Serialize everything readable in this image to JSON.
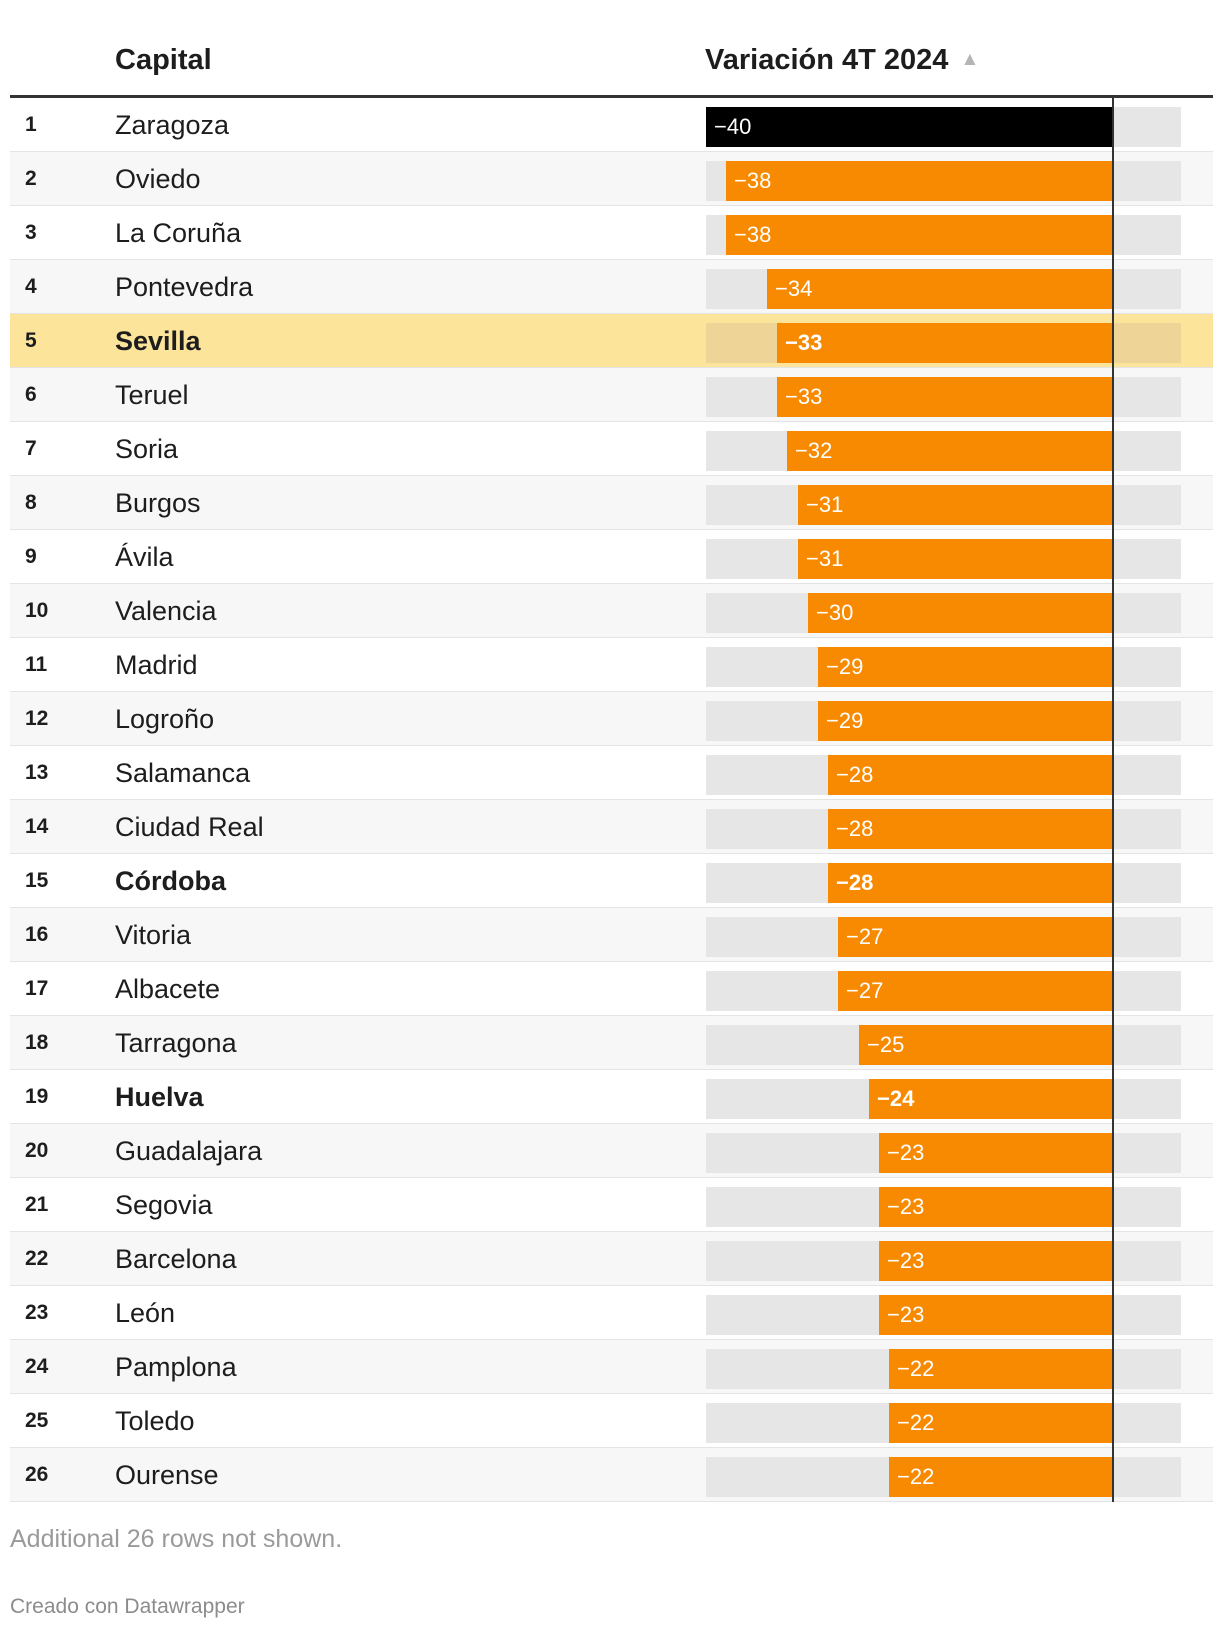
{
  "header": {
    "capital": "Capital",
    "variacion": "Variación 4T 2024",
    "sort_icon": "▲"
  },
  "chart_data": {
    "type": "table",
    "column": "Variación 4T 2024",
    "axis_range": [
      -40,
      0
    ],
    "colors": {
      "bar": "#f78a00",
      "bar_top": "#000000",
      "highlight_row": "#fde49b",
      "track": "#e6e6e6"
    },
    "rows": [
      {
        "rank": "1",
        "capital": "Zaragoza",
        "value": -40,
        "label": "−40",
        "bold": false,
        "highlight": false
      },
      {
        "rank": "2",
        "capital": "Oviedo",
        "value": -38,
        "label": "−38",
        "bold": false,
        "highlight": false
      },
      {
        "rank": "3",
        "capital": "La Coruña",
        "value": -38,
        "label": "−38",
        "bold": false,
        "highlight": false
      },
      {
        "rank": "4",
        "capital": "Pontevedra",
        "value": -34,
        "label": "−34",
        "bold": false,
        "highlight": false
      },
      {
        "rank": "5",
        "capital": "Sevilla",
        "value": -33,
        "label": "−33",
        "bold": true,
        "highlight": true
      },
      {
        "rank": "6",
        "capital": "Teruel",
        "value": -33,
        "label": "−33",
        "bold": false,
        "highlight": false
      },
      {
        "rank": "7",
        "capital": "Soria",
        "value": -32,
        "label": "−32",
        "bold": false,
        "highlight": false
      },
      {
        "rank": "8",
        "capital": "Burgos",
        "value": -31,
        "label": "−31",
        "bold": false,
        "highlight": false
      },
      {
        "rank": "9",
        "capital": "Ávila",
        "value": -31,
        "label": "−31",
        "bold": false,
        "highlight": false
      },
      {
        "rank": "10",
        "capital": "Valencia",
        "value": -30,
        "label": "−30",
        "bold": false,
        "highlight": false
      },
      {
        "rank": "11",
        "capital": "Madrid",
        "value": -29,
        "label": "−29",
        "bold": false,
        "highlight": false
      },
      {
        "rank": "12",
        "capital": "Logroño",
        "value": -29,
        "label": "−29",
        "bold": false,
        "highlight": false
      },
      {
        "rank": "13",
        "capital": "Salamanca",
        "value": -28,
        "label": "−28",
        "bold": false,
        "highlight": false
      },
      {
        "rank": "14",
        "capital": "Ciudad Real",
        "value": -28,
        "label": "−28",
        "bold": false,
        "highlight": false
      },
      {
        "rank": "15",
        "capital": "Córdoba",
        "value": -28,
        "label": "−28",
        "bold": true,
        "highlight": false
      },
      {
        "rank": "16",
        "capital": "Vitoria",
        "value": -27,
        "label": "−27",
        "bold": false,
        "highlight": false
      },
      {
        "rank": "17",
        "capital": "Albacete",
        "value": -27,
        "label": "−27",
        "bold": false,
        "highlight": false
      },
      {
        "rank": "18",
        "capital": "Tarragona",
        "value": -25,
        "label": "−25",
        "bold": false,
        "highlight": false
      },
      {
        "rank": "19",
        "capital": "Huelva",
        "value": -24,
        "label": "−24",
        "bold": true,
        "highlight": false
      },
      {
        "rank": "20",
        "capital": "Guadalajara",
        "value": -23,
        "label": "−23",
        "bold": false,
        "highlight": false
      },
      {
        "rank": "21",
        "capital": "Segovia",
        "value": -23,
        "label": "−23",
        "bold": false,
        "highlight": false
      },
      {
        "rank": "22",
        "capital": "Barcelona",
        "value": -23,
        "label": "−23",
        "bold": false,
        "highlight": false
      },
      {
        "rank": "23",
        "capital": "León",
        "value": -23,
        "label": "−23",
        "bold": false,
        "highlight": false
      },
      {
        "rank": "24",
        "capital": "Pamplona",
        "value": -22,
        "label": "−22",
        "bold": false,
        "highlight": false
      },
      {
        "rank": "25",
        "capital": "Toledo",
        "value": -22,
        "label": "−22",
        "bold": false,
        "highlight": false
      },
      {
        "rank": "26",
        "capital": "Ourense",
        "value": -22,
        "label": "−22",
        "bold": false,
        "highlight": false
      }
    ]
  },
  "footer": {
    "note": "Additional 26 rows not shown.",
    "credit": "Creado con Datawrapper"
  }
}
